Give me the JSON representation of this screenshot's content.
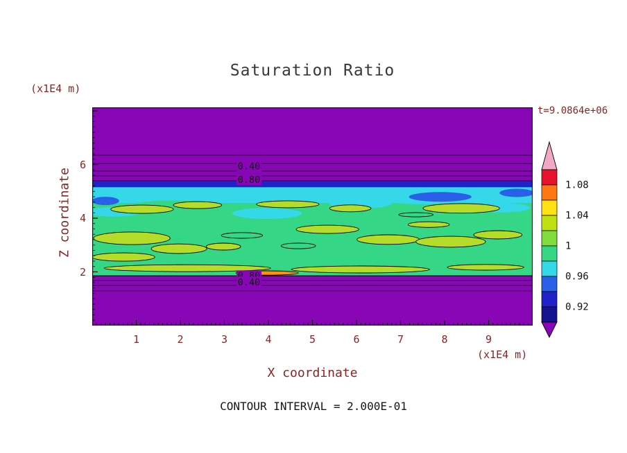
{
  "style_colors": {
    "annotation_text": "#8b2323",
    "title_text": "#383838",
    "plot_background_low_saturation": "#8806b6"
  },
  "chart_data": {
    "type": "heatmap",
    "subtype": "filled contour plot",
    "title": "Saturation Ratio",
    "xlabel": "X coordinate",
    "ylabel": "Z coordinate",
    "x_unit_label": "(x1E4 m)",
    "y_unit_label": "(x1E4 m)",
    "time_label": "t=9.0864e+06",
    "contour_interval_label": "CONTOUR INTERVAL = 2.000E-01",
    "contour_interval_value": 0.2,
    "xlim": [
      0,
      10
    ],
    "ylim": [
      0,
      8.13
    ],
    "x_ticks": [
      1,
      2,
      3,
      4,
      5,
      6,
      7,
      8,
      9
    ],
    "y_ticks": [
      2,
      4,
      6
    ],
    "grid": false,
    "legend_position": "right-colorbar",
    "colorbar": {
      "tick_labels": [
        "1.08",
        "1.04",
        "1",
        "0.96",
        "0.92"
      ],
      "segment_colors_top_to_bottom": [
        "#e8112d",
        "#ff7712",
        "#ffe012",
        "#bfe112",
        "#7fdc3a",
        "#36d687",
        "#35d8e8",
        "#2a5fe8",
        "#1e22c8",
        "#15128f"
      ],
      "top_arrow_color": "#f2a7c3",
      "bottom_arrow_color": "#8806b6"
    },
    "contour_line_labels": [
      {
        "text": "0.40",
        "x": 0.356,
        "y": 0.27
      },
      {
        "text": "0.80",
        "x": 0.356,
        "y": 0.332
      },
      {
        "text": "0.80",
        "x": 0.356,
        "y": 0.771
      },
      {
        "text": "0.40",
        "x": 0.356,
        "y": 0.801
      }
    ],
    "field_summary": "Low-saturation purple regions at top (z>5.3) and bottom (z<1.8) with stacked horizontal contour lines (0.40, 0.80); central high-saturation band mostly green (ratio ~1) with a navy edge and cyan strip along its top, scattered yellow-green patches (~1.02-1.04), blue pockets (~0.94-0.96) and a thin orange sliver (~1.06) near the band bottom",
    "render": {
      "background": "#8806b6",
      "bands": [
        {
          "y0": 0.355,
          "y1": 0.476,
          "color": "#35d8e8"
        },
        {
          "y0": 0.34,
          "y1": 0.366,
          "color": "#1e22c8"
        },
        {
          "y0": 0.438,
          "y1": 0.77,
          "color": "#36d687"
        }
      ],
      "blobs": [
        {
          "x": 0.184,
          "y": 0.449,
          "rx": 0.094,
          "ry": 0.022,
          "fill": "#36d687"
        },
        {
          "x": 0.704,
          "y": 0.457,
          "rx": 0.087,
          "ry": 0.022,
          "fill": "#36d687"
        },
        {
          "x": 0.45,
          "y": 0.452,
          "rx": 0.071,
          "ry": 0.019,
          "fill": "#36d687"
        },
        {
          "x": 0.397,
          "y": 0.486,
          "rx": 0.079,
          "ry": 0.025,
          "fill": "#35d8e8"
        },
        {
          "x": 0.609,
          "y": 0.441,
          "rx": 0.071,
          "ry": 0.022,
          "fill": "#35d8e8"
        },
        {
          "x": 0.05,
          "y": 0.479,
          "rx": 0.063,
          "ry": 0.022,
          "fill": "#35d8e8"
        },
        {
          "x": 0.751,
          "y": 0.419,
          "rx": 0.094,
          "ry": 0.025,
          "fill": "#35d8e8"
        },
        {
          "x": 0.924,
          "y": 0.46,
          "rx": 0.071,
          "ry": 0.022,
          "fill": "#35d8e8"
        },
        {
          "x": 0.79,
          "y": 0.41,
          "rx": 0.071,
          "ry": 0.022,
          "fill": "#2a5fe8"
        },
        {
          "x": 0.03,
          "y": 0.429,
          "rx": 0.031,
          "ry": 0.019,
          "fill": "#2a5fe8"
        },
        {
          "x": 0.964,
          "y": 0.392,
          "rx": 0.039,
          "ry": 0.019,
          "fill": "#2a5fe8"
        },
        {
          "x": 0.34,
          "y": 0.587,
          "rx": 0.047,
          "ry": 0.013,
          "stroke": "#000000"
        },
        {
          "x": 0.468,
          "y": 0.635,
          "rx": 0.039,
          "ry": 0.013,
          "stroke": "#000000"
        },
        {
          "x": 0.735,
          "y": 0.492,
          "rx": 0.039,
          "ry": 0.01,
          "stroke": "#000000"
        },
        {
          "x": 0.113,
          "y": 0.467,
          "rx": 0.071,
          "ry": 0.019,
          "fill": "#b4dc28",
          "stroke": "#000000"
        },
        {
          "x": 0.239,
          "y": 0.448,
          "rx": 0.055,
          "ry": 0.016,
          "fill": "#b4dc28",
          "stroke": "#000000"
        },
        {
          "x": 0.444,
          "y": 0.444,
          "rx": 0.071,
          "ry": 0.016,
          "fill": "#b4dc28",
          "stroke": "#000000"
        },
        {
          "x": 0.586,
          "y": 0.463,
          "rx": 0.047,
          "ry": 0.016,
          "fill": "#b4dc28",
          "stroke": "#000000"
        },
        {
          "x": 0.838,
          "y": 0.463,
          "rx": 0.087,
          "ry": 0.022,
          "fill": "#b4dc28",
          "stroke": "#000000"
        },
        {
          "x": 0.09,
          "y": 0.6,
          "rx": 0.087,
          "ry": 0.029,
          "fill": "#b4dc28",
          "stroke": "#000000"
        },
        {
          "x": 0.197,
          "y": 0.648,
          "rx": 0.063,
          "ry": 0.022,
          "fill": "#b4dc28",
          "stroke": "#000000"
        },
        {
          "x": 0.071,
          "y": 0.686,
          "rx": 0.071,
          "ry": 0.019,
          "fill": "#b4dc28",
          "stroke": "#000000"
        },
        {
          "x": 0.298,
          "y": 0.638,
          "rx": 0.039,
          "ry": 0.016,
          "fill": "#b4dc28",
          "stroke": "#000000"
        },
        {
          "x": 0.534,
          "y": 0.559,
          "rx": 0.071,
          "ry": 0.019,
          "fill": "#b4dc28",
          "stroke": "#000000"
        },
        {
          "x": 0.672,
          "y": 0.606,
          "rx": 0.071,
          "ry": 0.022,
          "fill": "#b4dc28",
          "stroke": "#000000"
        },
        {
          "x": 0.814,
          "y": 0.616,
          "rx": 0.079,
          "ry": 0.025,
          "fill": "#b4dc28",
          "stroke": "#000000"
        },
        {
          "x": 0.921,
          "y": 0.584,
          "rx": 0.055,
          "ry": 0.019,
          "fill": "#b4dc28",
          "stroke": "#000000"
        },
        {
          "x": 0.764,
          "y": 0.537,
          "rx": 0.047,
          "ry": 0.013,
          "fill": "#b4dc28",
          "stroke": "#000000"
        },
        {
          "x": 0.216,
          "y": 0.737,
          "rx": 0.189,
          "ry": 0.016,
          "fill": "#b4dc28",
          "stroke": "#000000"
        },
        {
          "x": 0.609,
          "y": 0.743,
          "rx": 0.157,
          "ry": 0.016,
          "fill": "#b4dc28",
          "stroke": "#000000"
        },
        {
          "x": 0.893,
          "y": 0.733,
          "rx": 0.087,
          "ry": 0.013,
          "fill": "#b4dc28",
          "stroke": "#000000"
        },
        {
          "x": 0.397,
          "y": 0.759,
          "rx": 0.071,
          "ry": 0.01,
          "fill": "#ff9012",
          "stroke": "#000000"
        }
      ],
      "contour_lines": [
        0.219,
        0.257,
        0.292,
        0.314,
        0.3365,
        0.772,
        0.794,
        0.816,
        0.841
      ]
    }
  }
}
